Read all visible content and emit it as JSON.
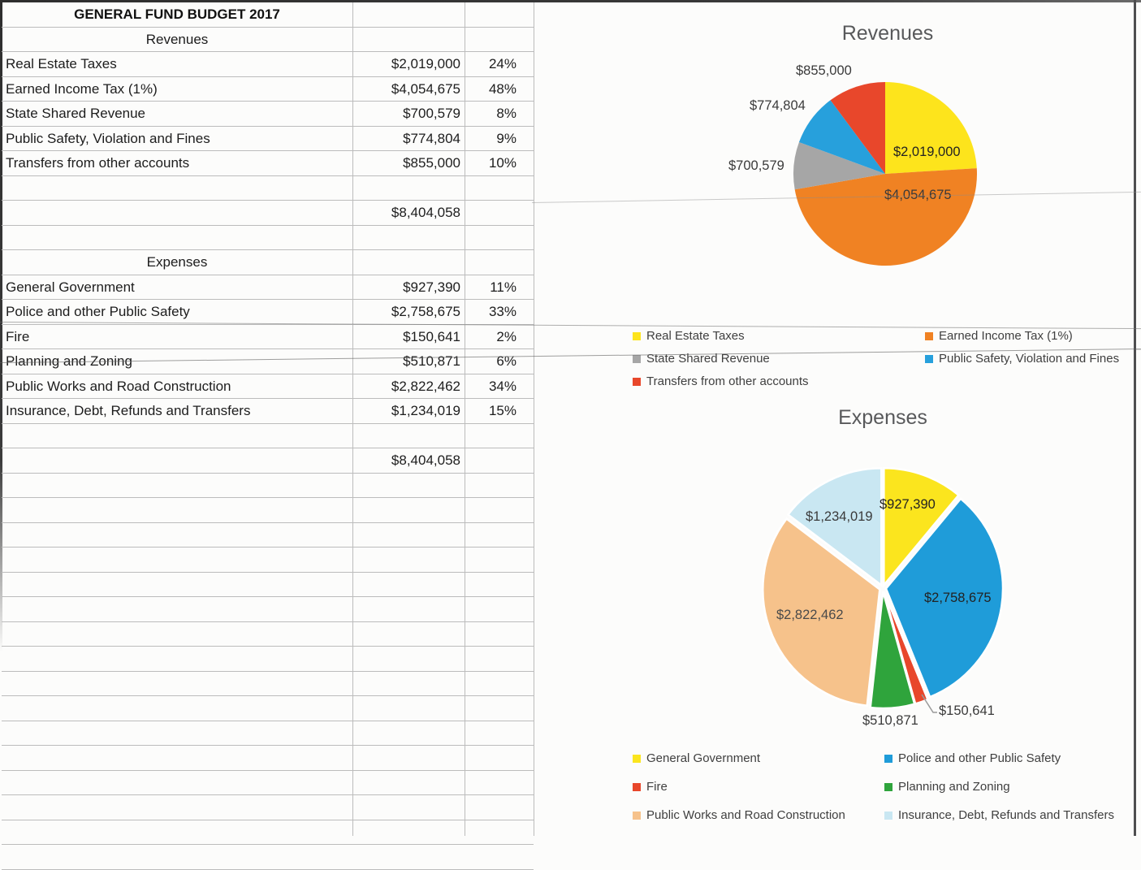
{
  "table": {
    "title": "GENERAL FUND BUDGET 2017",
    "grid_rows": [
      {
        "type": "title",
        "label": "GENERAL FUND BUDGET 2017"
      },
      {
        "type": "section",
        "label": "Revenues"
      },
      {
        "type": "item",
        "label": "Real Estate Taxes",
        "value": "$2,019,000",
        "pct": "24%"
      },
      {
        "type": "item",
        "label": "Earned Income Tax (1%)",
        "value": "$4,054,675",
        "pct": "48%"
      },
      {
        "type": "item",
        "label": "State Shared Revenue",
        "value": "$700,579",
        "pct": "8%"
      },
      {
        "type": "item",
        "label": "Public Safety, Violation and Fines",
        "value": "$774,804",
        "pct": "9%"
      },
      {
        "type": "item",
        "label": "Transfers from other accounts",
        "value": "$855,000",
        "pct": "10%"
      },
      {
        "type": "blank"
      },
      {
        "type": "total",
        "value": "$8,404,058"
      },
      {
        "type": "blank"
      },
      {
        "type": "section",
        "label": "Expenses"
      },
      {
        "type": "item",
        "label": "General Government",
        "value": "$927,390",
        "pct": "11%"
      },
      {
        "type": "item",
        "label": "Police and other Public Safety",
        "value": "$2,758,675",
        "pct": "33%"
      },
      {
        "type": "item",
        "label": "Fire",
        "value": "$150,641",
        "pct": "2%"
      },
      {
        "type": "item",
        "label": "Planning and Zoning",
        "value": "$510,871",
        "pct": "6%"
      },
      {
        "type": "item",
        "label": "Public Works and Road Construction",
        "value": "$2,822,462",
        "pct": "34%"
      },
      {
        "type": "item",
        "label": "Insurance, Debt, Refunds and Transfers",
        "value": "$1,234,019",
        "pct": "15%"
      },
      {
        "type": "blank"
      },
      {
        "type": "total",
        "value": "$8,404,058"
      }
    ]
  },
  "chart_data": [
    {
      "type": "pie",
      "title": "Revenues",
      "categories": [
        "Real Estate Taxes",
        "Earned Income Tax (1%)",
        "State Shared Revenue",
        "Public Safety, Violation and Fines",
        "Transfers from other accounts"
      ],
      "values": [
        2019000,
        4054675,
        700579,
        774804,
        855000
      ],
      "labels": [
        "$2,019,000",
        "$4,054,675",
        "$700,579",
        "$774,804",
        "$855,000"
      ],
      "percentages": [
        "24%",
        "48%",
        "8%",
        "9%",
        "10%"
      ],
      "colors": [
        "#fde41c",
        "#f08223",
        "#a6a6a6",
        "#27a0dc",
        "#e8472b"
      ],
      "total": 8404058,
      "start_angle_deg": 0,
      "direction": "clockwise",
      "exploded": false,
      "legend_position": "bottom"
    },
    {
      "type": "pie",
      "title": "Expenses",
      "categories": [
        "General Government",
        "Police and other Public Safety",
        "Fire",
        "Planning and Zoning",
        "Public Works and Road Construction",
        "Insurance, Debt, Refunds and Transfers"
      ],
      "values": [
        927390,
        2758675,
        150641,
        510871,
        2822462,
        1234019
      ],
      "labels": [
        "$927,390",
        "$2,758,675",
        "$150,641",
        "$510,871",
        "$2,822,462",
        "$1,234,019"
      ],
      "percentages": [
        "11%",
        "33%",
        "2%",
        "6%",
        "34%",
        "15%"
      ],
      "colors": [
        "#fbe51e",
        "#1f9cd9",
        "#e8472b",
        "#2fa43c",
        "#f6c28b",
        "#c9e7f2"
      ],
      "total": 8404058,
      "start_angle_deg": 0,
      "direction": "clockwise",
      "exploded": true,
      "legend_position": "bottom"
    }
  ]
}
